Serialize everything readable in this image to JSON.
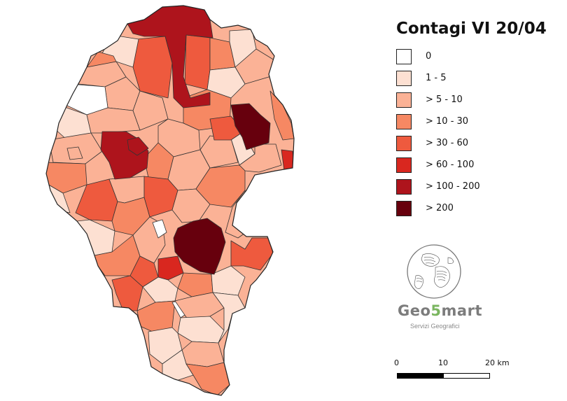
{
  "title": "Contagi VI 20/04",
  "legend": [
    {
      "label": "0",
      "color": "#ffffff"
    },
    {
      "label": "1 - 5",
      "color": "#fde0d2"
    },
    {
      "label": "> 5 - 10",
      "color": "#fbb296"
    },
    {
      "label": "> 10 - 30",
      "color": "#f68863"
    },
    {
      "label": "> 30 - 60",
      "color": "#ee5a3e"
    },
    {
      "label": "> 60 - 100",
      "color": "#d9271f"
    },
    {
      "label": "> 100 - 200",
      "color": "#ae141c"
    },
    {
      "label": "> 200",
      "color": "#67000d"
    }
  ],
  "logo": {
    "name_prefix": "Geo",
    "name_digit": "5",
    "name_suffix": "mart",
    "subtitle": "Servizi Geografici"
  },
  "scale": {
    "labels": [
      "0",
      "10",
      "20 km"
    ]
  }
}
